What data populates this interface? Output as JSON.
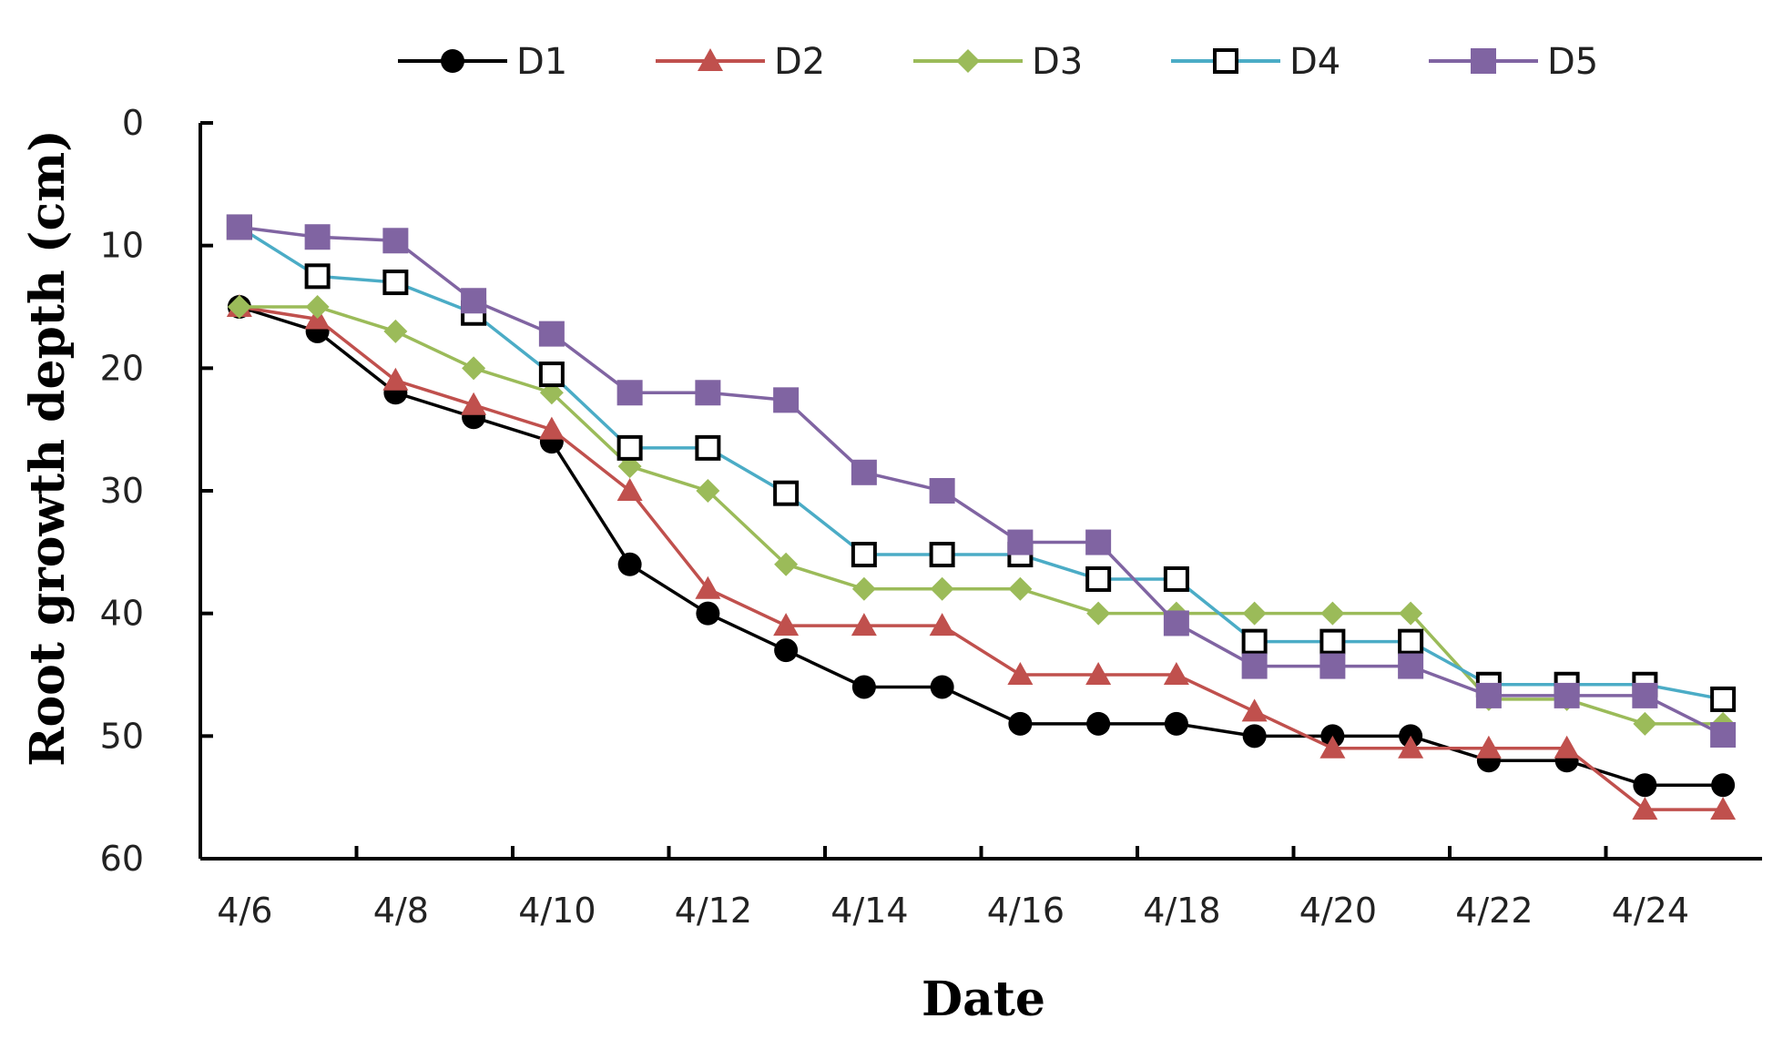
{
  "chart_data": {
    "type": "line",
    "title": "",
    "xlabel": "Date",
    "ylabel": "Root growth depth (cm)",
    "y_inverted": true,
    "ylim": [
      0,
      60
    ],
    "yticks": [
      0,
      10,
      20,
      30,
      40,
      50,
      60
    ],
    "x_tick_labels": [
      "4/6",
      "4/8",
      "4/10",
      "4/12",
      "4/14",
      "4/16",
      "4/18",
      "4/20",
      "4/22",
      "4/24"
    ],
    "x_points": 20,
    "legend_position": "top",
    "series": [
      {
        "name": "D1",
        "color": "#000000",
        "marker": "circle",
        "values": [
          15,
          17,
          22,
          24,
          26,
          36,
          40,
          43,
          46,
          46,
          49,
          49,
          49,
          50,
          50,
          50,
          52,
          52,
          54,
          54
        ]
      },
      {
        "name": "D2",
        "color": "#c0504d",
        "marker": "triangle",
        "values": [
          15,
          16,
          21,
          23,
          25,
          30,
          38,
          41,
          41,
          41,
          45,
          45,
          45,
          48,
          51,
          51,
          51,
          51,
          56,
          56
        ]
      },
      {
        "name": "D3",
        "color": "#9bbb59",
        "marker": "diamond",
        "values": [
          15,
          15,
          17,
          20,
          22,
          28,
          30,
          36,
          38,
          38,
          38,
          40,
          40,
          40,
          40,
          40,
          47,
          47,
          49,
          49
        ]
      },
      {
        "name": "D4",
        "color": "#4bacc6",
        "marker": "square-open",
        "values": [
          8.5,
          12.5,
          13,
          15.5,
          20.5,
          26.5,
          26.5,
          30.2,
          35.2,
          35.2,
          35.2,
          37.2,
          37.2,
          42.3,
          42.3,
          42.3,
          45.8,
          45.8,
          45.8,
          47
        ]
      },
      {
        "name": "D5",
        "color": "#8064a2",
        "marker": "square",
        "values": [
          8.5,
          9.3,
          9.6,
          14.5,
          17.2,
          22,
          22,
          22.6,
          28.5,
          30,
          34.2,
          34.2,
          40.8,
          44.3,
          44.3,
          44.3,
          46.7,
          46.7,
          46.7,
          49.9
        ]
      }
    ]
  }
}
